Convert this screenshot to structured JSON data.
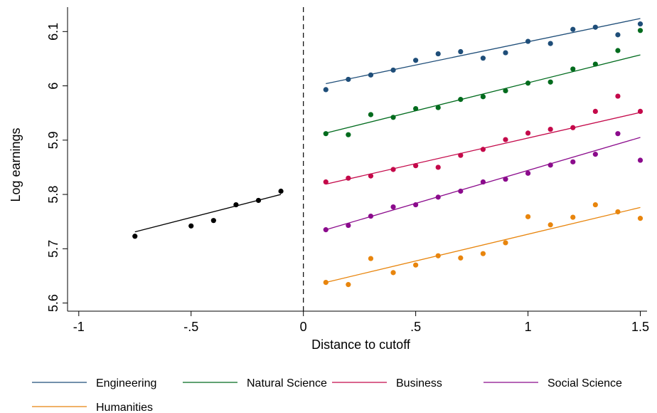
{
  "chart_data": {
    "type": "scatter",
    "title": "",
    "xlabel": "Distance to cutoff",
    "ylabel": "Log earnings",
    "xlim": [
      -1.05,
      1.53
    ],
    "ylim": [
      5.585,
      6.145
    ],
    "xticks": [
      {
        "value": -1,
        "label": "-1"
      },
      {
        "value": -0.5,
        "label": "-.5"
      },
      {
        "value": 0,
        "label": "0"
      },
      {
        "value": 0.5,
        "label": ".5"
      },
      {
        "value": 1,
        "label": "1"
      },
      {
        "value": 1.5,
        "label": "1.5"
      }
    ],
    "yticks": [
      {
        "value": 5.6,
        "label": "5.6"
      },
      {
        "value": 5.7,
        "label": "5.7"
      },
      {
        "value": 5.8,
        "label": "5.8"
      },
      {
        "value": 5.9,
        "label": "5.9"
      },
      {
        "value": 6.0,
        "label": "6"
      },
      {
        "value": 6.1,
        "label": "6.1"
      }
    ],
    "grid": false,
    "cutoff_line": {
      "x": 0,
      "style": "dashed",
      "color": "#000000"
    },
    "legend_position": "bottom",
    "below_cutoff": {
      "color": "#000000",
      "x": [
        -0.75,
        -0.5,
        -0.4,
        -0.3,
        -0.2,
        -0.1
      ],
      "y": [
        5.723,
        5.742,
        5.752,
        5.781,
        5.789,
        5.806
      ],
      "fit": {
        "x": [
          -0.75,
          -0.1
        ],
        "y": [
          5.731,
          5.8
        ]
      }
    },
    "series": [
      {
        "name": "Engineering",
        "color": "#1f4e79",
        "x": [
          0.1,
          0.2,
          0.3,
          0.4,
          0.5,
          0.6,
          0.7,
          0.8,
          0.9,
          1.0,
          1.1,
          1.2,
          1.3,
          1.4,
          1.5
        ],
        "y": [
          5.993,
          6.012,
          6.02,
          6.029,
          6.047,
          6.059,
          6.063,
          6.051,
          6.061,
          6.082,
          6.078,
          6.104,
          6.108,
          6.094,
          6.114
        ],
        "fit": {
          "x": [
            0.1,
            1.5
          ],
          "y": [
            6.004,
            6.124
          ]
        }
      },
      {
        "name": "Natural Science",
        "color": "#006b1d",
        "x": [
          0.1,
          0.2,
          0.3,
          0.4,
          0.5,
          0.6,
          0.7,
          0.8,
          0.9,
          1.0,
          1.1,
          1.2,
          1.3,
          1.4,
          1.5
        ],
        "y": [
          5.912,
          5.91,
          5.947,
          5.942,
          5.958,
          5.96,
          5.975,
          5.98,
          5.991,
          6.005,
          6.007,
          6.031,
          6.04,
          6.065,
          6.102
        ],
        "fit": {
          "x": [
            0.1,
            1.5
          ],
          "y": [
            5.913,
            6.057
          ]
        }
      },
      {
        "name": "Business",
        "color": "#c4094a",
        "x": [
          0.1,
          0.2,
          0.3,
          0.4,
          0.5,
          0.6,
          0.7,
          0.8,
          0.9,
          1.0,
          1.1,
          1.2,
          1.3,
          1.4,
          1.5
        ],
        "y": [
          5.823,
          5.83,
          5.834,
          5.846,
          5.853,
          5.85,
          5.872,
          5.883,
          5.901,
          5.913,
          5.92,
          5.923,
          5.953,
          5.981,
          5.953
        ],
        "fit": {
          "x": [
            0.1,
            1.5
          ],
          "y": [
            5.819,
            5.951
          ]
        }
      },
      {
        "name": "Social Science",
        "color": "#8b0b8c",
        "x": [
          0.1,
          0.2,
          0.3,
          0.4,
          0.5,
          0.6,
          0.7,
          0.8,
          0.9,
          1.0,
          1.1,
          1.2,
          1.3,
          1.4,
          1.5
        ],
        "y": [
          5.735,
          5.743,
          5.76,
          5.777,
          5.781,
          5.795,
          5.806,
          5.823,
          5.828,
          5.839,
          5.854,
          5.86,
          5.874,
          5.912,
          5.863
        ],
        "fit": {
          "x": [
            0.1,
            1.5
          ],
          "y": [
            5.735,
            5.905
          ]
        }
      },
      {
        "name": "Humanities",
        "color": "#e8850d",
        "x": [
          0.1,
          0.2,
          0.3,
          0.4,
          0.5,
          0.6,
          0.7,
          0.8,
          0.9,
          1.0,
          1.1,
          1.2,
          1.3,
          1.4,
          1.5
        ],
        "y": [
          5.638,
          5.634,
          5.682,
          5.656,
          5.67,
          5.687,
          5.683,
          5.691,
          5.711,
          5.759,
          5.744,
          5.758,
          5.781,
          5.768,
          5.756
        ],
        "fit": {
          "x": [
            0.1,
            1.5
          ],
          "y": [
            5.638,
            5.776
          ]
        }
      }
    ]
  }
}
